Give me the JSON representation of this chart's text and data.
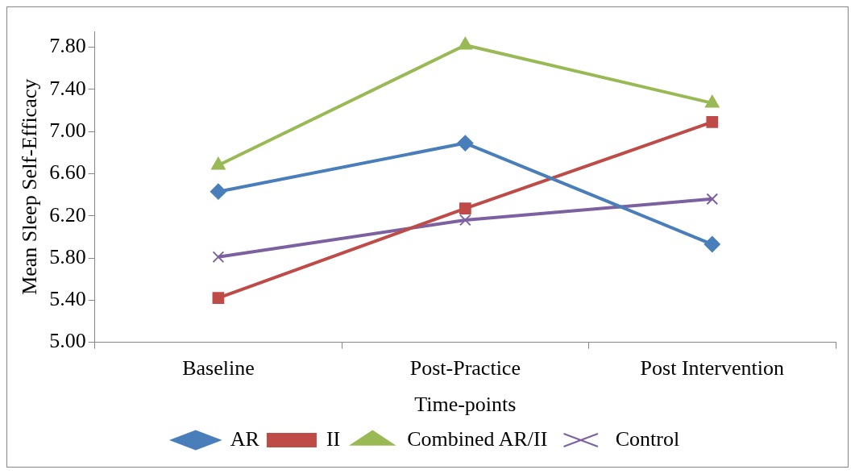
{
  "chart_data": {
    "type": "line",
    "xlabel": "Time-points",
    "ylabel": "Mean Sleep Self-Efficacy",
    "categories": [
      "Baseline",
      "Post-Practice",
      "Post Intervention"
    ],
    "series": [
      {
        "name": "AR",
        "color": "#4a7ebb",
        "marker": "diamond",
        "values": [
          6.43,
          6.89,
          5.93
        ]
      },
      {
        "name": "II",
        "color": "#be4b48",
        "marker": "square",
        "values": [
          5.42,
          6.27,
          7.09
        ]
      },
      {
        "name": "Combined AR/II",
        "color": "#98b954",
        "marker": "triangle",
        "values": [
          6.68,
          7.82,
          7.27
        ]
      },
      {
        "name": "Control",
        "color": "#7d60a0",
        "marker": "cross",
        "values": [
          5.81,
          6.16,
          6.36
        ]
      }
    ],
    "ylim": [
      5,
      7.95
    ],
    "yticks": [
      {
        "value": 5,
        "label": "5.00"
      },
      {
        "value": 5.4,
        "label": "5.40"
      },
      {
        "value": 5.8,
        "label": "5.80"
      },
      {
        "value": 6.2,
        "label": "6.20"
      },
      {
        "value": 6.6,
        "label": "6.60"
      },
      {
        "value": 7,
        "label": "7.00"
      },
      {
        "value": 7.4,
        "label": "7.40"
      },
      {
        "value": 7.8,
        "label": "7.80"
      }
    ],
    "grid": false,
    "legend": "bottom"
  }
}
